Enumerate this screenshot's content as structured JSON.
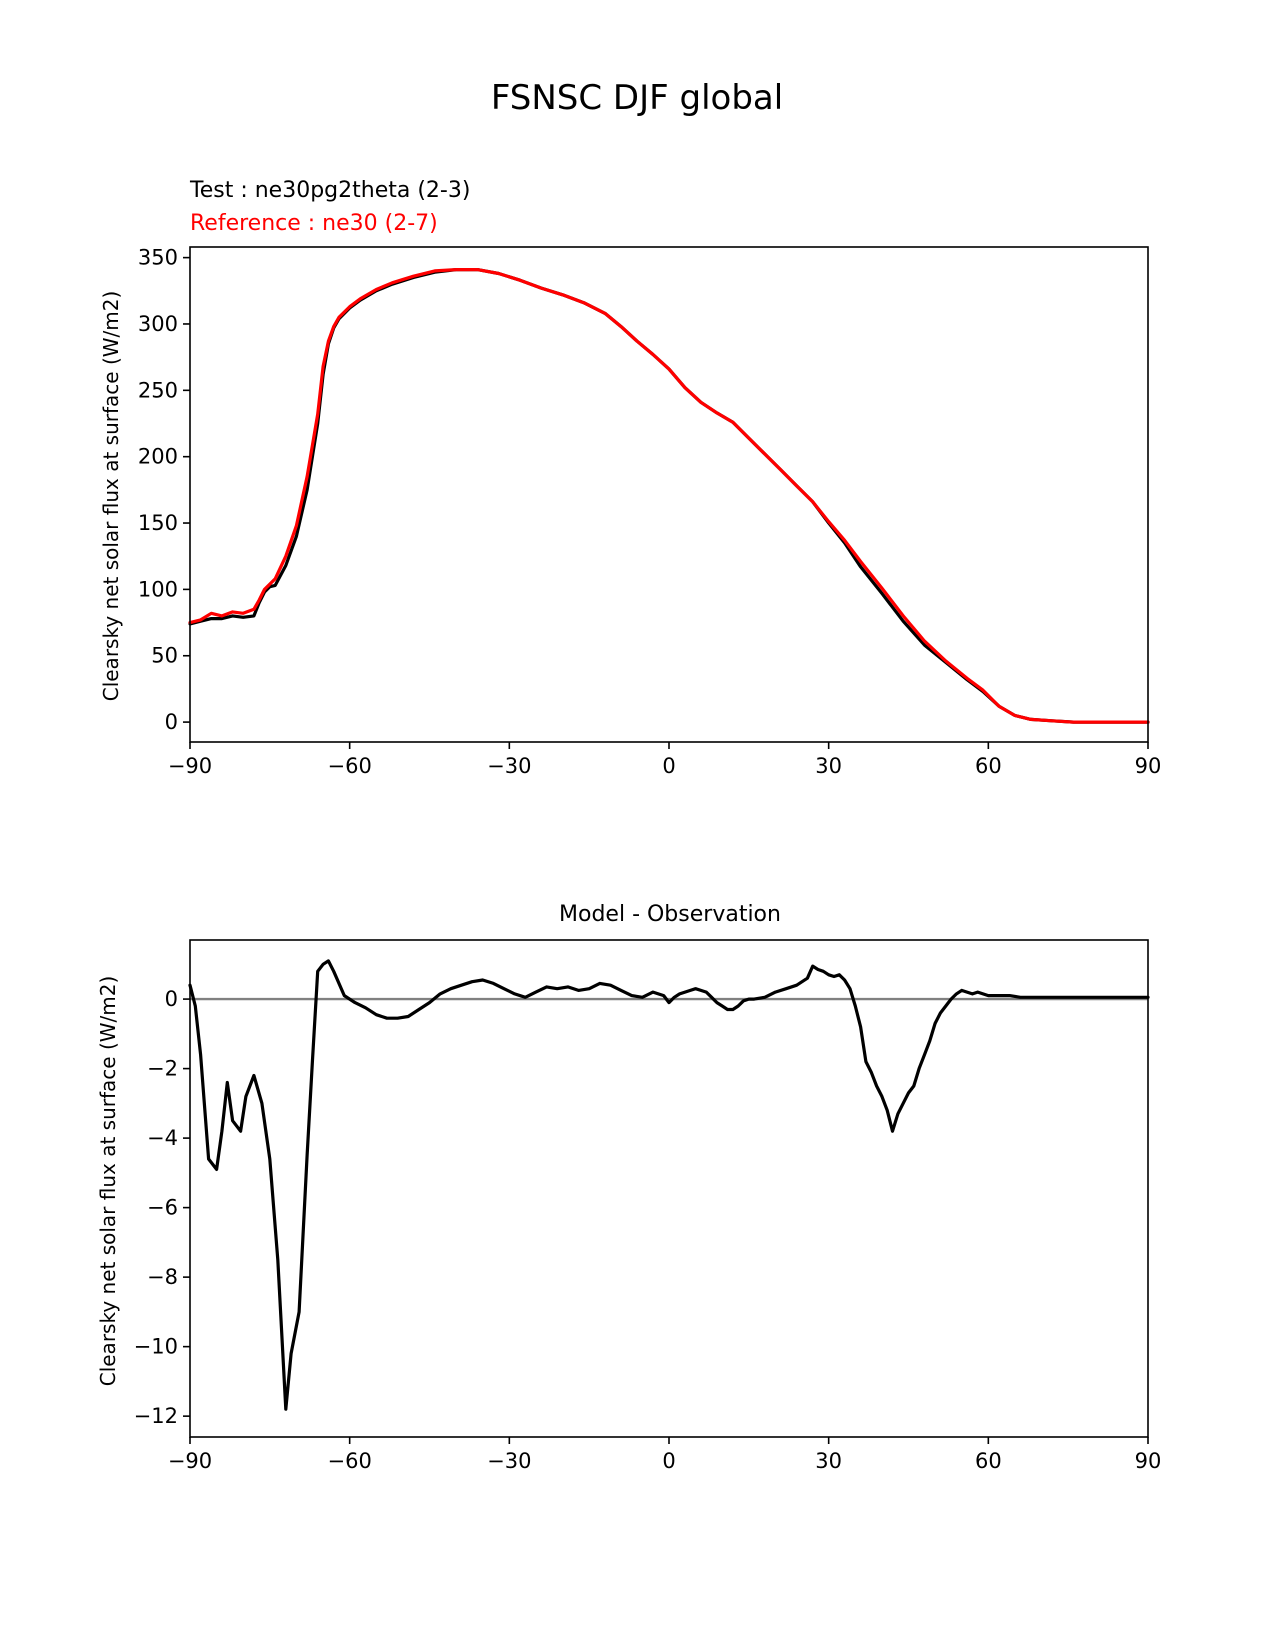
{
  "figure_title": "FSNSC DJF global",
  "chart_data": [
    {
      "type": "line",
      "title_lines": [
        "Test : ne30pg2theta (2-3)",
        "Reference : ne30 (2-7)"
      ],
      "xlabel": "",
      "ylabel": "Clearsky net solar flux at surface (W/m2)",
      "xlim": [
        -90,
        90
      ],
      "ylim": [
        -15,
        358
      ],
      "xticks": [
        -90,
        -60,
        -30,
        0,
        30,
        60,
        90
      ],
      "xtick_labels": [
        "−90",
        "−60",
        "−30",
        "0",
        "30",
        "60",
        "90"
      ],
      "yticks": [
        0,
        50,
        100,
        150,
        200,
        250,
        300,
        350
      ],
      "ytick_labels": [
        "0",
        "50",
        "100",
        "150",
        "200",
        "250",
        "300",
        "350"
      ],
      "series": [
        {
          "name": "Test : ne30pg2theta (2-3)",
          "color": "#000000",
          "x": [
            -90,
            -88,
            -86,
            -84,
            -82,
            -80,
            -78,
            -77,
            -76,
            -75,
            -74,
            -72,
            -70,
            -68,
            -66,
            -65,
            -64,
            -63,
            -62,
            -60,
            -58,
            -55,
            -52,
            -48,
            -44,
            -40,
            -36,
            -32,
            -28,
            -24,
            -20,
            -16,
            -12,
            -9,
            -6,
            -3,
            0,
            3,
            6,
            9,
            12,
            15,
            18,
            21,
            24,
            27,
            30,
            33,
            36,
            40,
            44,
            48,
            52,
            56,
            59,
            62,
            65,
            68,
            72,
            76,
            80,
            84,
            88,
            90
          ],
          "y": [
            74,
            76,
            78,
            78,
            80,
            79,
            80,
            90,
            98,
            102,
            103,
            118,
            140,
            175,
            225,
            262,
            285,
            297,
            304,
            312,
            318,
            325,
            330,
            335,
            339,
            341,
            341,
            338,
            333,
            327,
            322,
            316,
            308,
            298,
            287,
            277,
            266,
            252,
            241,
            233,
            226,
            214,
            202,
            190,
            178,
            166,
            150,
            135,
            117,
            97,
            76,
            58,
            45,
            32,
            23,
            12,
            5,
            2,
            1,
            0,
            0,
            0,
            0,
            0
          ]
        },
        {
          "name": "Reference : ne30 (2-7)",
          "color": "#ff0000",
          "x": [
            -90,
            -88,
            -86,
            -84,
            -82,
            -80,
            -78,
            -77,
            -76,
            -75,
            -74,
            -72,
            -70,
            -68,
            -66,
            -65,
            -64,
            -63,
            -62,
            -60,
            -58,
            -55,
            -52,
            -48,
            -44,
            -40,
            -36,
            -32,
            -28,
            -24,
            -20,
            -16,
            -12,
            -9,
            -6,
            -3,
            0,
            3,
            6,
            9,
            12,
            15,
            18,
            21,
            24,
            27,
            30,
            33,
            36,
            40,
            44,
            48,
            52,
            56,
            59,
            62,
            65,
            68,
            72,
            76,
            80,
            84,
            88,
            90
          ],
          "y": [
            75,
            77,
            82,
            80,
            83,
            82,
            85,
            92,
            100,
            104,
            108,
            125,
            148,
            185,
            232,
            268,
            287,
            298,
            305,
            313,
            319,
            326,
            331,
            336,
            340,
            341,
            341,
            338,
            333,
            327,
            322,
            316,
            308,
            298,
            287,
            277,
            266,
            252,
            241,
            233,
            226,
            214,
            202,
            190,
            178,
            166,
            151,
            137,
            121,
            101,
            80,
            61,
            46,
            33,
            24,
            12,
            5,
            2,
            1,
            0,
            0,
            0,
            0,
            0
          ]
        }
      ]
    },
    {
      "type": "line",
      "title": "Model - Observation",
      "xlabel": "",
      "ylabel": "Clearsky net solar flux at surface (W/m2)",
      "xlim": [
        -90,
        90
      ],
      "ylim": [
        -12.6,
        1.7
      ],
      "xticks": [
        -90,
        -60,
        -30,
        0,
        30,
        60,
        90
      ],
      "xtick_labels": [
        "−90",
        "−60",
        "−30",
        "0",
        "30",
        "60",
        "90"
      ],
      "yticks": [
        -12,
        -10,
        -8,
        -6,
        -4,
        -2,
        0
      ],
      "ytick_labels": [
        "−12",
        "−10",
        "−8",
        "−6",
        "−4",
        "−2",
        "0"
      ],
      "zero_line_color": "#808080",
      "series": [
        {
          "name": "Model - Observation",
          "color": "#000000",
          "x": [
            -90,
            -89,
            -88,
            -86.5,
            -85,
            -84,
            -83,
            -82,
            -80.5,
            -79.5,
            -78,
            -76.5,
            -75,
            -73.5,
            -72,
            -71,
            -69.5,
            -68,
            -67,
            -66,
            -65,
            -64,
            -63,
            -61,
            -59,
            -57,
            -55,
            -53,
            -51,
            -49,
            -47,
            -45,
            -43,
            -41,
            -39,
            -37,
            -35,
            -33,
            -31,
            -29,
            -27,
            -25,
            -23,
            -21,
            -19,
            -17,
            -15,
            -13,
            -11,
            -9,
            -7,
            -5,
            -3,
            -1,
            0,
            1,
            2,
            3,
            4,
            5,
            6,
            7,
            8,
            9,
            10,
            11,
            12,
            13,
            14,
            15,
            16,
            18,
            20,
            22,
            24,
            26,
            27,
            28,
            29,
            30,
            31,
            32,
            33,
            34,
            35,
            36,
            37,
            38,
            39,
            40,
            41,
            42,
            43,
            44,
            45,
            46,
            47,
            48,
            49,
            50,
            51,
            52,
            53,
            54,
            55,
            56,
            57,
            58,
            59,
            60,
            61,
            62,
            64,
            66,
            68,
            70,
            72,
            76,
            80,
            85,
            90
          ],
          "y": [
            0.4,
            -0.2,
            -1.6,
            -4.6,
            -4.9,
            -3.8,
            -2.4,
            -3.5,
            -3.8,
            -2.8,
            -2.2,
            -3,
            -4.6,
            -7.5,
            -11.8,
            -10.2,
            -9,
            -4.5,
            -1.8,
            0.8,
            1,
            1.1,
            0.8,
            0.1,
            -0.1,
            -0.25,
            -0.45,
            -0.55,
            -0.55,
            -0.5,
            -0.3,
            -0.1,
            0.15,
            0.3,
            0.4,
            0.5,
            0.55,
            0.45,
            0.3,
            0.15,
            0.05,
            0.2,
            0.35,
            0.3,
            0.35,
            0.25,
            0.3,
            0.45,
            0.4,
            0.25,
            0.1,
            0.05,
            0.2,
            0.1,
            -0.1,
            0.05,
            0.15,
            0.2,
            0.25,
            0.3,
            0.25,
            0.2,
            0.05,
            -0.1,
            -0.2,
            -0.3,
            -0.3,
            -0.2,
            -0.05,
            0,
            0,
            0.05,
            0.2,
            0.3,
            0.4,
            0.6,
            0.95,
            0.85,
            0.8,
            0.7,
            0.65,
            0.7,
            0.55,
            0.3,
            -0.2,
            -0.8,
            -1.8,
            -2.1,
            -2.5,
            -2.8,
            -3.2,
            -3.8,
            -3.3,
            -3,
            -2.7,
            -2.5,
            -2,
            -1.6,
            -1.2,
            -0.7,
            -0.4,
            -0.2,
            0,
            0.15,
            0.25,
            0.2,
            0.15,
            0.2,
            0.15,
            0.1,
            0.1,
            0.1,
            0.1,
            0.05,
            0.05,
            0.05,
            0.05,
            0.05,
            0.05,
            0.05,
            0.05
          ]
        }
      ]
    }
  ]
}
